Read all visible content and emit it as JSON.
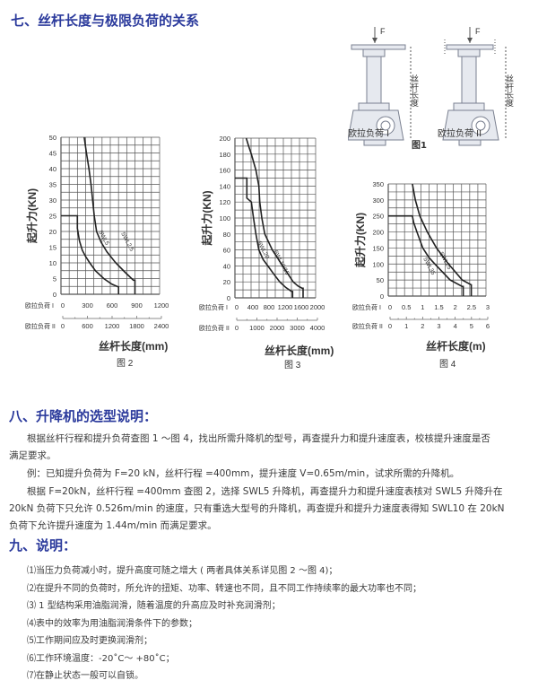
{
  "section7": {
    "title": "七、丝杆长度与极限负荷的关系"
  },
  "figure1": {
    "force_label": "F",
    "length_label": "丝杆长度",
    "caption_left": "欧拉负荷 I",
    "caption_right": "欧拉负荷 II",
    "caption": "图1"
  },
  "chart_data": [
    {
      "type": "line",
      "caption": "图 2",
      "ylabel": "起升力(KN)",
      "xlabel": "丝杆长度(mm)",
      "ylim": [
        0,
        50
      ],
      "yticks": [
        "0",
        "5",
        "10",
        "15",
        "20",
        "25",
        "30",
        "35",
        "40",
        "45",
        "50"
      ],
      "xlim": [
        0,
        1200
      ],
      "axis1_label": "欧拉负荷 I",
      "axis1_ticks": [
        "0",
        "300",
        "600",
        "900",
        "1200"
      ],
      "axis2_label": "欧拉负荷 II",
      "axis2_ticks": [
        "0",
        "600",
        "1200",
        "1800",
        "2400"
      ],
      "grid": true,
      "series": [
        {
          "name": "SWL2.5",
          "points": [
            [
              0,
              25
            ],
            [
              200,
              25
            ],
            [
              200,
              21
            ],
            [
              225,
              17
            ],
            [
              260,
              14
            ],
            [
              300,
              12
            ],
            [
              350,
              10
            ],
            [
              420,
              7.5
            ],
            [
              520,
              5
            ],
            [
              620,
              3.2
            ],
            [
              700,
              2.3
            ],
            [
              700,
              0
            ]
          ]
        },
        {
          "name": "SWL5",
          "points": [
            [
              283,
              50
            ],
            [
              310,
              45
            ],
            [
              340,
              40
            ],
            [
              365,
              35
            ],
            [
              385,
              30
            ],
            [
              405,
              25
            ],
            [
              433,
              20
            ],
            [
              490,
              16.5
            ],
            [
              560,
              13.5
            ],
            [
              667,
              10
            ],
            [
              780,
              7
            ],
            [
              880,
              4.5
            ],
            [
              900,
              4.5
            ],
            [
              900,
              0
            ]
          ]
        }
      ]
    },
    {
      "type": "line",
      "caption": "图 3",
      "ylabel": "起升力(KN)",
      "xlabel": "丝杆长度(mm)",
      "ylim": [
        0,
        200
      ],
      "yticks": [
        "0",
        "20",
        "40",
        "60",
        "80",
        "100",
        "120",
        "140",
        "160",
        "180",
        "200"
      ],
      "xlim": [
        0,
        2000
      ],
      "axis1_label": "欧拉负荷 I",
      "axis1_ticks": [
        "0",
        "400",
        "800",
        "1200",
        "1600",
        "2000"
      ],
      "axis2_label": "欧拉负荷 II",
      "axis2_ticks": [
        "0",
        "1000",
        "2000",
        "3000",
        "4000"
      ],
      "grid": true,
      "series": [
        {
          "name": "SWL10/15",
          "points": [
            [
              0,
              150
            ],
            [
              296,
              150
            ],
            [
              296,
              125
            ],
            [
              407,
              120
            ],
            [
              459,
              100
            ],
            [
              519,
              80
            ],
            [
              593,
              60
            ],
            [
              700,
              48
            ],
            [
              815,
              40
            ],
            [
              960,
              30
            ],
            [
              1111,
              20
            ],
            [
              1260,
              13
            ],
            [
              1407,
              8
            ],
            [
              1430,
              8
            ],
            [
              1430,
              0
            ]
          ]
        },
        {
          "name": "SWL20",
          "points": [
            [
              281,
              200
            ],
            [
              340,
              190
            ],
            [
              407,
              180
            ],
            [
              519,
              160
            ],
            [
              593,
              140
            ],
            [
              615,
              120
            ],
            [
              667,
              100
            ],
            [
              741,
              80
            ],
            [
              926,
              60
            ],
            [
              1185,
              40
            ],
            [
              1444,
              20
            ],
            [
              1560,
              15
            ],
            [
              1667,
              12
            ],
            [
              1689,
              12
            ],
            [
              1689,
              0
            ]
          ]
        }
      ]
    },
    {
      "type": "line",
      "caption": "图 4",
      "ylabel": "起升力(KN)",
      "xlabel": "丝杆长度(m)",
      "ylim": [
        0,
        350
      ],
      "yticks": [
        "0",
        "50",
        "100",
        "150",
        "200",
        "250",
        "300",
        "350"
      ],
      "xlim": [
        0,
        3
      ],
      "axis1_label": "欧拉负荷 I",
      "axis1_ticks": [
        "0",
        "0.5",
        "1",
        "1.5",
        "2",
        "2.5",
        "3"
      ],
      "axis2_label": "欧拉负荷 II",
      "axis2_ticks": [
        "0",
        "1",
        "2",
        "3",
        "4",
        "5",
        "6"
      ],
      "grid": true,
      "series": [
        {
          "name": "SWL25",
          "points": [
            [
              0,
              250
            ],
            [
              0.74,
              250
            ],
            [
              0.78,
              230
            ],
            [
              0.88,
              200
            ],
            [
              1.06,
              150
            ],
            [
              1.25,
              120
            ],
            [
              1.43,
              100
            ],
            [
              1.9,
              50
            ],
            [
              2.27,
              30
            ],
            [
              2.3,
              30
            ],
            [
              2.3,
              0
            ]
          ]
        },
        {
          "name": "SWL35",
          "points": [
            [
              0.74,
              350
            ],
            [
              0.83,
              300
            ],
            [
              0.97,
              250
            ],
            [
              1.2,
              200
            ],
            [
              1.48,
              150
            ],
            [
              1.85,
              100
            ],
            [
              2.27,
              50
            ],
            [
              2.55,
              35
            ],
            [
              2.55,
              0
            ]
          ]
        }
      ]
    }
  ],
  "section8": {
    "title": "八、升降机的选型说明：",
    "paragraphs": [
      "根据丝杆行程和提升负荷查图 1 ～图 4，找出所需升降机的型号，再查提升力和提升速度表，校核提升速度是否",
      "满足要求。",
      "例：已知提升负荷为 F=20 kN，丝杆行程 =400mm，提升速度 V=0.65m/min，试求所需的升降机。",
      "根据 F=20kN，丝杆行程 =400mm 查图 2，选择 SWL5 升降机，再查提升力和提升速度表核对 SWL5 升降升在",
      "20kN 负荷下只允许 0.526m/min 的速度，只有重选大型号的升降机，再查提升和提升力速度表得知 SWL10 在 20kN",
      "负荷下允许提升速度为 1.44m/min 而满足要求。"
    ]
  },
  "section9": {
    "title": "九、说明：",
    "items": [
      "⑴当压力负荷减小时，提升高度可随之增大 ( 两者具体关系详见图 2 ～图 4)；",
      "⑵在提升不同的负荷时，所允许的扭矩、功率、转速也不同，且不同工作持续率的最大功率也不同；",
      "⑶ 1 型结构采用油脂润滑，随着温度的升高应及时补充润滑剂；",
      "⑷表中的效率为用油脂润滑条件下的参数；",
      "⑸工作期间应及时更换润滑剂；",
      "⑹工作环境温度：-20˚C～ +80˚C；",
      "⑺在静止状态一般可以自锁。"
    ]
  },
  "colors": {
    "heading": "#2b3a9c",
    "text": "#3a3a3a",
    "grid": "#444444",
    "curve": "#222222"
  }
}
